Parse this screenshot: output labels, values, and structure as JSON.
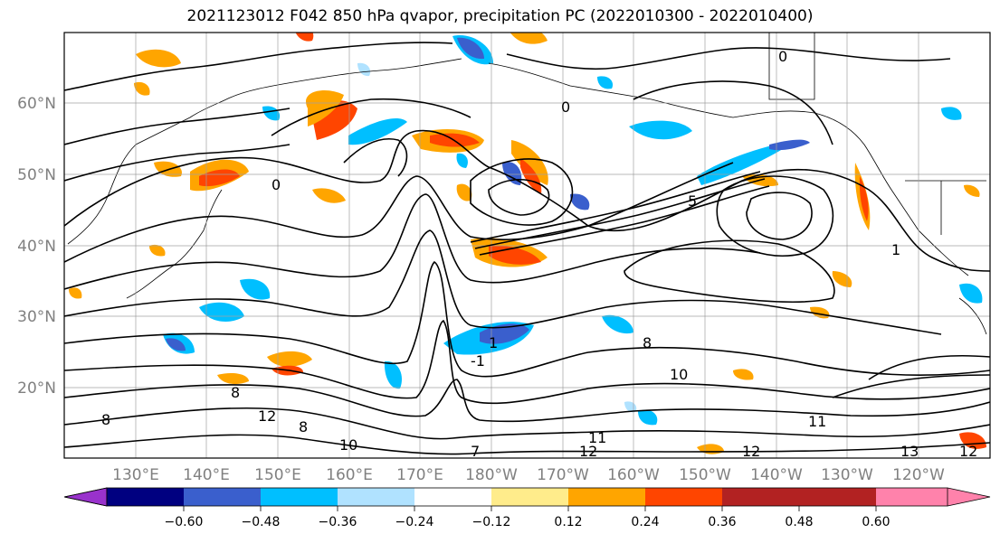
{
  "title": "2021123012 F042 850 hPa qvapor, precipitation PC (2022010300 - 2022010400)",
  "map": {
    "lat_labels": [
      "60°N",
      "50°N",
      "40°N",
      "30°N",
      "20°N"
    ],
    "lon_labels": [
      "130°E",
      "140°E",
      "150°E",
      "160°E",
      "170°E",
      "180°W",
      "170°W",
      "160°W",
      "150°W",
      "140°W",
      "130°W",
      "120°W"
    ],
    "contour_labels": [
      "0",
      "0",
      "0",
      "1",
      "-1",
      "1",
      "8",
      "12",
      "8",
      "8",
      "10",
      "11",
      "12",
      "13",
      "11",
      "7",
      "10",
      "5",
      "8",
      "12",
      "12"
    ]
  },
  "colorbar": {
    "colors": [
      "#9932cc",
      "#000080",
      "#3a5fcd",
      "#00bfff",
      "#b0e2ff",
      "#ffffff",
      "#ffec8b",
      "#ffa500",
      "#ff4500",
      "#b22222",
      "#ff82ab"
    ],
    "tick_labels": [
      "−0.60",
      "−0.48",
      "−0.36",
      "−0.24",
      "−0.12",
      "0.12",
      "0.24",
      "0.36",
      "0.48",
      "0.60"
    ]
  }
}
